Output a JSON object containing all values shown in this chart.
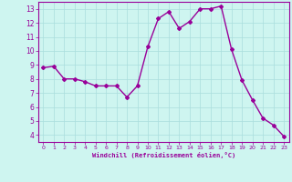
{
  "x": [
    0,
    1,
    2,
    3,
    4,
    5,
    6,
    7,
    8,
    9,
    10,
    11,
    12,
    13,
    14,
    15,
    16,
    17,
    18,
    19,
    20,
    21,
    22,
    23
  ],
  "y": [
    8.8,
    8.9,
    8.0,
    8.0,
    7.8,
    7.5,
    7.5,
    7.5,
    6.7,
    7.5,
    10.3,
    12.3,
    12.8,
    11.6,
    12.1,
    13.0,
    13.0,
    13.2,
    10.1,
    7.9,
    6.5,
    5.2,
    4.7,
    3.9
  ],
  "line_color": "#990099",
  "marker": "D",
  "marker_size": 2.0,
  "bg_color": "#cef5f0",
  "grid_color": "#aadddd",
  "xlabel": "Windchill (Refroidissement éolien,°C)",
  "xlabel_color": "#990099",
  "tick_color": "#990099",
  "ylim": [
    3.5,
    13.5
  ],
  "yticks": [
    4,
    5,
    6,
    7,
    8,
    9,
    10,
    11,
    12,
    13
  ],
  "xticks": [
    0,
    1,
    2,
    3,
    4,
    5,
    6,
    7,
    8,
    9,
    10,
    11,
    12,
    13,
    14,
    15,
    16,
    17,
    18,
    19,
    20,
    21,
    22,
    23
  ],
  "line_width": 1.0,
  "spine_color": "#990099"
}
